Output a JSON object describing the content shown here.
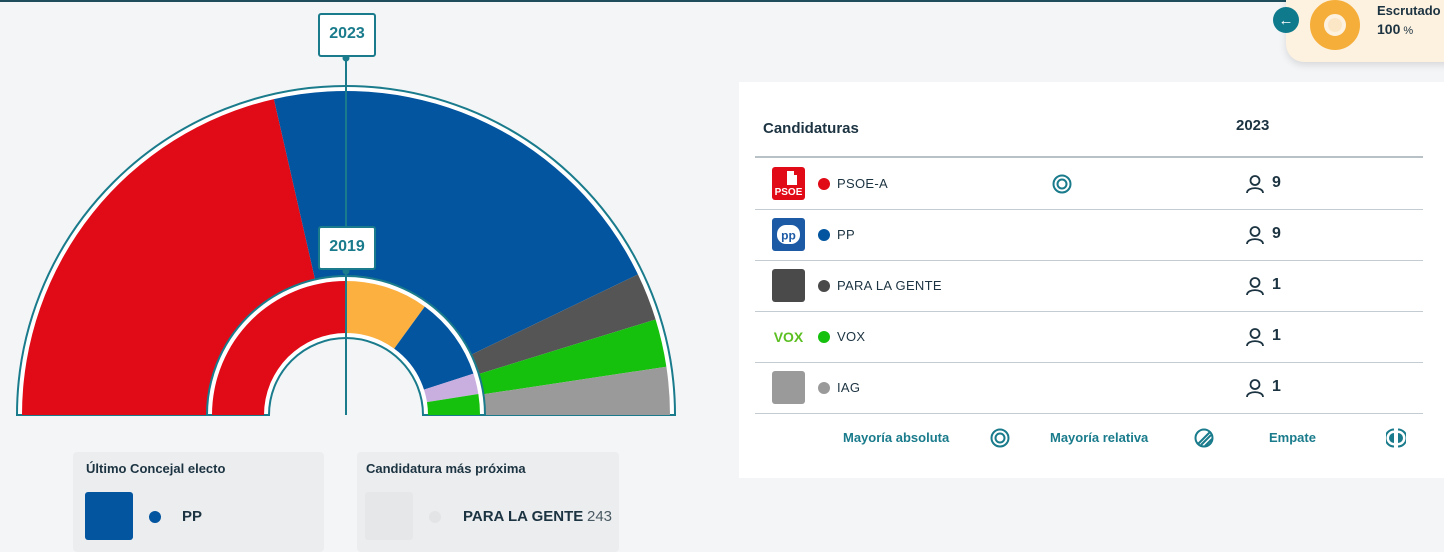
{
  "header": {
    "escrutado_label": "Escrutado",
    "escrutado_value": "100",
    "escrutado_unit": "%",
    "escrutado_fraction": 1.0
  },
  "chart_data": {
    "type": "hemicycle",
    "rings": [
      {
        "year": "2023",
        "seats": [
          {
            "party": "PSOE-A",
            "seats": 9,
            "color": "#e10a17"
          },
          {
            "party": "PP",
            "seats": 9,
            "color": "#03559f"
          },
          {
            "party": "PARA LA GENTE",
            "seats": 1,
            "color": "#555555"
          },
          {
            "party": "VOX",
            "seats": 1,
            "color": "#16c10e"
          },
          {
            "party": "IAG",
            "seats": 1,
            "color": "#9a9a9a"
          }
        ]
      },
      {
        "year": "2019",
        "seats": [
          {
            "party": "PSOE-A",
            "seats": 10,
            "color": "#e10a17"
          },
          {
            "party": "",
            "seats": 4,
            "color": "#fbb040"
          },
          {
            "party": "PP",
            "seats": 4,
            "color": "#03559f"
          },
          {
            "party": "",
            "seats": 1,
            "color": "#c9aee0"
          },
          {
            "party": "VOX",
            "seats": 1,
            "color": "#16c10e"
          }
        ]
      }
    ]
  },
  "cards": {
    "last_elected_title": "Último Concejal electo",
    "last_elected_party": "PP",
    "last_elected_color": "#03559f",
    "closest_title": "Candidatura más próxima",
    "closest_party": "PARA LA GENTE",
    "closest_votes": "243"
  },
  "table": {
    "col_candidates": "Candidaturas",
    "col_year": "2023",
    "rows": [
      {
        "name": "PSOE-A",
        "seats": "9",
        "color": "#e10a17",
        "logo_text": "PSOE",
        "majority": "absoluta"
      },
      {
        "name": "PP",
        "seats": "9",
        "color": "#03559f",
        "logo_text": "pp",
        "majority": ""
      },
      {
        "name": "PARA LA GENTE",
        "seats": "1",
        "color": "#4a4a4a",
        "logo_text": "",
        "majority": ""
      },
      {
        "name": "VOX",
        "seats": "1",
        "color": "#16c10e",
        "logo_text": "VOX",
        "majority": ""
      },
      {
        "name": "IAG",
        "seats": "1",
        "color": "#9a9a9a",
        "logo_text": "",
        "majority": ""
      }
    ],
    "legend": {
      "absolute": "Mayoría absoluta",
      "relative": "Mayoría relativa",
      "tie": "Empate"
    }
  }
}
